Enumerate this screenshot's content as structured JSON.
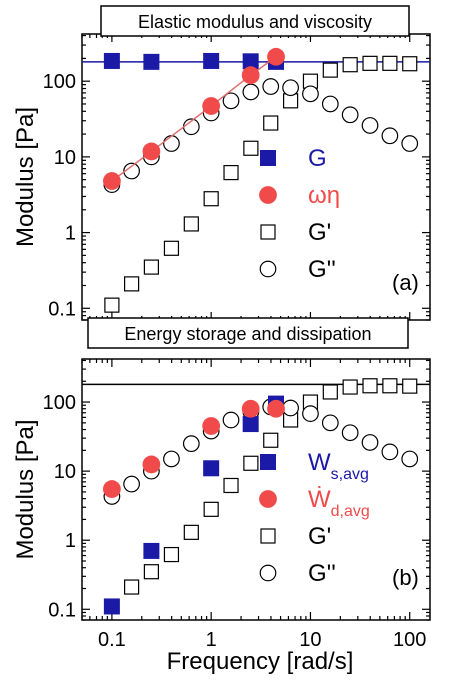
{
  "figure": {
    "shared_xlabel": "Frequency [rad/s]",
    "x_tick_labels": [
      "0.1",
      "1",
      "10",
      "100"
    ]
  },
  "colors": {
    "blue": "#1a1aa6",
    "red": "#f04a4a",
    "red_line": "#e07070",
    "axis": "#000000"
  },
  "chart_data": [
    {
      "type": "scatter",
      "panel_label": "(a)",
      "title": "Elastic modulus and viscosity",
      "xlabel": "",
      "ylabel": "Modulus [Pa]",
      "xscale": "log",
      "yscale": "log",
      "xlim": [
        0.05,
        160
      ],
      "ylim": [
        0.07,
        420
      ],
      "y_tick_labels": [
        "0.1",
        "1",
        "10",
        "100"
      ],
      "grid": false,
      "legend_position": "right-middle",
      "reference_line_y": 180,
      "series": [
        {
          "name": "G",
          "marker": "filled-square",
          "color": "#1a1aa6",
          "x": [
            0.1,
            0.25,
            1.0,
            2.5,
            4.5
          ],
          "y": [
            185,
            180,
            185,
            183,
            180
          ]
        },
        {
          "name": "ωη",
          "marker": "filled-circle",
          "color": "#f04a4a",
          "connected": true,
          "x": [
            0.1,
            0.25,
            1.0,
            2.5,
            4.5
          ],
          "y": [
            4.8,
            11.8,
            47,
            120,
            210
          ]
        },
        {
          "name": "G'",
          "marker": "open-square",
          "color": "#000000",
          "x": [
            0.1,
            0.158,
            0.25,
            0.398,
            0.631,
            1.0,
            1.585,
            2.512,
            3.981,
            6.31,
            10,
            15.85,
            25.12,
            39.81,
            63.1,
            100
          ],
          "y": [
            0.11,
            0.21,
            0.35,
            0.62,
            1.3,
            2.8,
            6.2,
            13,
            28,
            55,
            100,
            140,
            165,
            172,
            172,
            170
          ]
        },
        {
          "name": "G''",
          "marker": "open-circle",
          "color": "#000000",
          "x": [
            0.1,
            0.158,
            0.25,
            0.398,
            0.631,
            1.0,
            1.585,
            2.512,
            3.981,
            6.31,
            10,
            15.85,
            25.12,
            39.81,
            63.1,
            100
          ],
          "y": [
            4.3,
            6.5,
            10,
            15,
            25,
            38,
            55,
            72,
            85,
            82,
            68,
            50,
            36,
            26,
            19,
            15
          ]
        }
      ]
    },
    {
      "type": "scatter",
      "panel_label": "(b)",
      "title": "Energy storage and dissipation",
      "xlabel": "Frequency [rad/s]",
      "ylabel": "Modulus [Pa]",
      "xscale": "log",
      "yscale": "log",
      "xlim": [
        0.05,
        160
      ],
      "ylim": [
        0.07,
        420
      ],
      "y_tick_labels": [
        "0.1",
        "1",
        "10",
        "100"
      ],
      "grid": false,
      "legend_position": "right-middle",
      "reference_line_y": 180,
      "series": [
        {
          "name": "W",
          "subscript": "s,avg",
          "marker": "filled-square",
          "color": "#1a1aa6",
          "x": [
            0.1,
            0.25,
            1.0,
            2.5,
            4.5
          ],
          "y": [
            0.11,
            0.7,
            11,
            48,
            95
          ]
        },
        {
          "name": "Ẇ",
          "subscript": "d,avg",
          "marker": "filled-circle",
          "color": "#f04a4a",
          "x": [
            0.1,
            0.25,
            1.0,
            2.5,
            4.5
          ],
          "y": [
            5.5,
            12.5,
            45,
            80,
            80
          ]
        },
        {
          "name": "G'",
          "marker": "open-square",
          "color": "#000000",
          "x": [
            0.1,
            0.158,
            0.25,
            0.398,
            0.631,
            1.0,
            1.585,
            2.512,
            3.981,
            6.31,
            10,
            15.85,
            25.12,
            39.81,
            63.1,
            100
          ],
          "y": [
            0.11,
            0.21,
            0.35,
            0.62,
            1.3,
            2.8,
            6.2,
            13,
            28,
            55,
            100,
            140,
            165,
            172,
            172,
            170
          ]
        },
        {
          "name": "G''",
          "marker": "open-circle",
          "color": "#000000",
          "x": [
            0.1,
            0.158,
            0.25,
            0.398,
            0.631,
            1.0,
            1.585,
            2.512,
            3.981,
            6.31,
            10,
            15.85,
            25.12,
            39.81,
            63.1,
            100
          ],
          "y": [
            4.3,
            6.5,
            10,
            15,
            25,
            38,
            55,
            72,
            85,
            82,
            68,
            50,
            36,
            26,
            19,
            15
          ]
        }
      ]
    }
  ]
}
